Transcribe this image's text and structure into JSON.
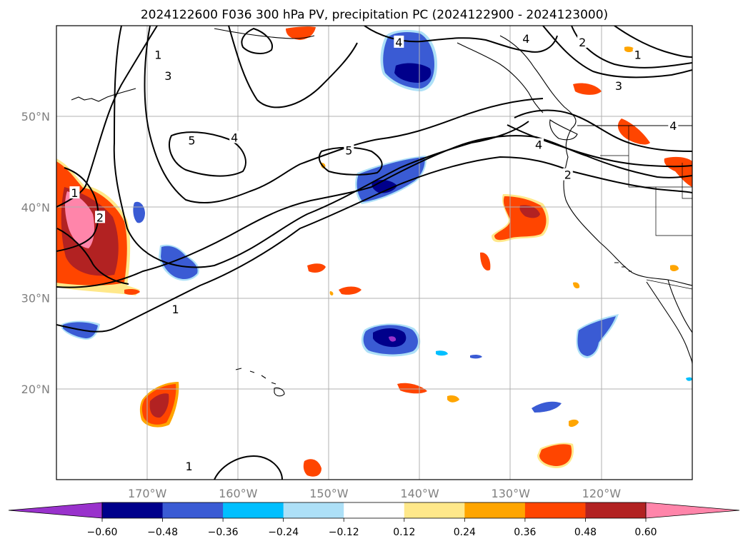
{
  "title": "2024122600 F036 300 hPa PV, precipitation PC (2024122900 - 2024123000)",
  "map": {
    "projection": "PlateCarree",
    "lon_range": [
      -180,
      -110
    ],
    "lat_range": [
      10,
      60
    ],
    "gridlines": true,
    "lon_ticks": [
      {
        "value": -170,
        "label": "170°W"
      },
      {
        "value": -160,
        "label": "160°W"
      },
      {
        "value": -150,
        "label": "150°W"
      },
      {
        "value": -140,
        "label": "140°W"
      },
      {
        "value": -130,
        "label": "130°W"
      },
      {
        "value": -120,
        "label": "120°W"
      }
    ],
    "lat_ticks": [
      {
        "value": 20,
        "label": "20°N"
      },
      {
        "value": 30,
        "label": "30°N"
      },
      {
        "value": 40,
        "label": "40°N"
      },
      {
        "value": 50,
        "label": "50°N"
      }
    ]
  },
  "colorbar": {
    "orientation": "horizontal",
    "extend": "both",
    "levels": [
      -0.72,
      -0.6,
      -0.48,
      -0.36,
      -0.24,
      -0.12,
      0.12,
      0.24,
      0.36,
      0.48,
      0.6,
      0.72
    ],
    "colors": [
      "#9932CC",
      "#00008B",
      "#3A5BD4",
      "#00BFFF",
      "#ADE0F7",
      "#FFFFFF",
      "#FFE88A",
      "#FFA500",
      "#FF4500",
      "#B22222",
      "#FF85AA"
    ],
    "tick_labels": [
      "−0.60",
      "−0.48",
      "−0.36",
      "−0.24",
      "−0.12",
      "0.12",
      "0.24",
      "0.36",
      "0.48",
      "0.60"
    ],
    "tick_values": [
      -0.6,
      -0.48,
      -0.36,
      -0.24,
      -0.12,
      0.12,
      0.24,
      0.36,
      0.48,
      0.6
    ]
  },
  "pv_contour_labels": [
    {
      "text": "1",
      "lon": -168.8,
      "lat": 56.8
    },
    {
      "text": "3",
      "lon": -167.7,
      "lat": 54.5
    },
    {
      "text": "5",
      "lon": -165.1,
      "lat": 47.4
    },
    {
      "text": "4",
      "lon": -160.4,
      "lat": 47.7
    },
    {
      "text": "5",
      "lon": -147.8,
      "lat": 46.3
    },
    {
      "text": "4",
      "lon": -142.3,
      "lat": 58.2
    },
    {
      "text": "4",
      "lon": -128.3,
      "lat": 58.6
    },
    {
      "text": "2",
      "lon": -122.1,
      "lat": 58.2
    },
    {
      "text": "1",
      "lon": -116.0,
      "lat": 56.8
    },
    {
      "text": "3",
      "lon": -118.1,
      "lat": 53.4
    },
    {
      "text": "4",
      "lon": -112.1,
      "lat": 49.0
    },
    {
      "text": "4",
      "lon": -126.9,
      "lat": 46.9
    },
    {
      "text": "2",
      "lon": -123.7,
      "lat": 43.6
    },
    {
      "text": "1",
      "lon": -178.0,
      "lat": 41.6
    },
    {
      "text": "2",
      "lon": -175.2,
      "lat": 38.9
    },
    {
      "text": "1",
      "lon": -166.9,
      "lat": 28.8
    },
    {
      "text": "1",
      "lon": -165.4,
      "lat": 11.5
    }
  ],
  "precip_anomalies": [
    {
      "sign": "positive",
      "peak": 0.72,
      "lon": -175,
      "lat": 38
    },
    {
      "sign": "positive",
      "peak": 0.48,
      "lon": -168,
      "lat": 18
    },
    {
      "sign": "positive",
      "peak": 0.48,
      "lon": -128,
      "lat": 39
    },
    {
      "sign": "positive",
      "peak": 0.36,
      "lon": -124,
      "lat": 12.5
    },
    {
      "sign": "negative",
      "peak": -0.72,
      "lon": -143,
      "lat": 25.5
    },
    {
      "sign": "negative",
      "peak": -0.6,
      "lon": -142,
      "lat": 56
    },
    {
      "sign": "negative",
      "peak": -0.6,
      "lon": -143,
      "lat": 42.5
    },
    {
      "sign": "negative",
      "peak": -0.36,
      "lon": -165,
      "lat": 34
    },
    {
      "sign": "negative",
      "peak": -0.36,
      "lon": -123,
      "lat": 26
    }
  ]
}
